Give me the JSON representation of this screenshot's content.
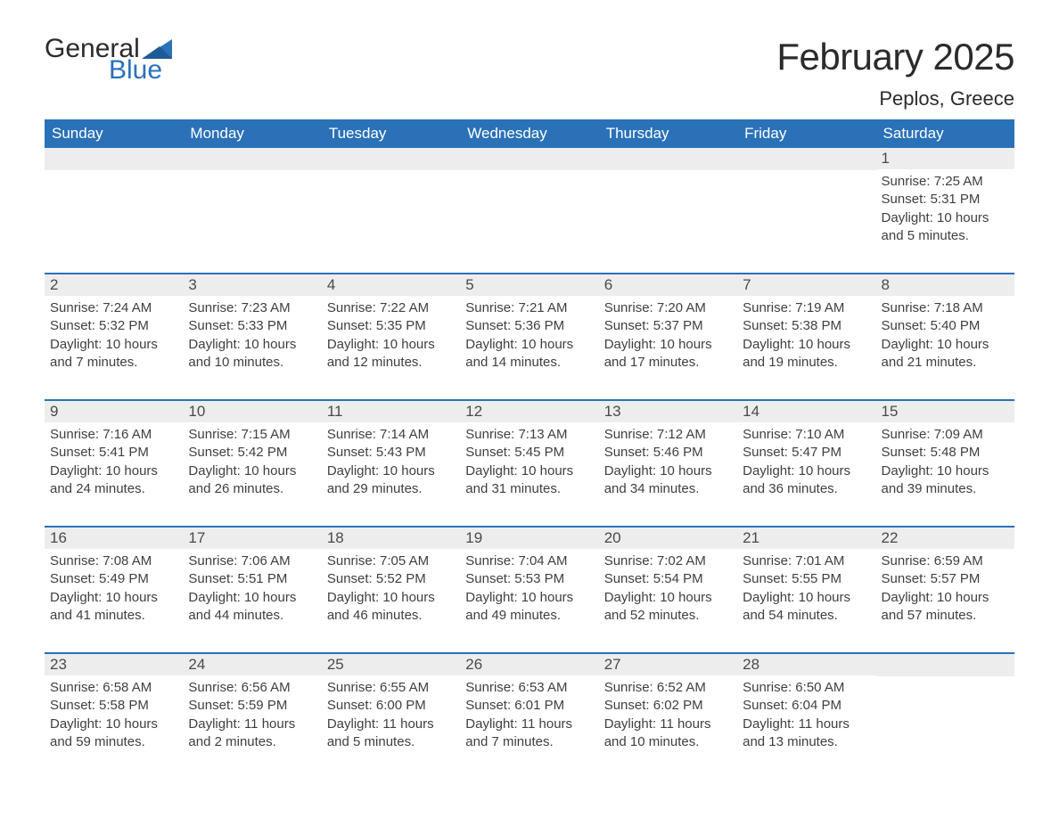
{
  "logo": {
    "word1": "General",
    "word2": "Blue"
  },
  "title": "February 2025",
  "location": "Peplos, Greece",
  "colors": {
    "header_bg": "#2a71b8",
    "header_text": "#ffffff",
    "daynum_bg": "#ededed",
    "row_divider": "#2a71b8",
    "body_text": "#3f3f3f",
    "page_bg": "#ffffff"
  },
  "font": {
    "family": "Arial",
    "title_size": 42,
    "location_size": 22,
    "weekday_size": 17,
    "daynum_size": 17,
    "body_size": 15
  },
  "weekdays": [
    "Sunday",
    "Monday",
    "Tuesday",
    "Wednesday",
    "Thursday",
    "Friday",
    "Saturday"
  ],
  "weeks": [
    [
      null,
      null,
      null,
      null,
      null,
      null,
      {
        "n": "1",
        "sunrise": "Sunrise: 7:25 AM",
        "sunset": "Sunset: 5:31 PM",
        "daylight": "Daylight: 10 hours and 5 minutes."
      }
    ],
    [
      {
        "n": "2",
        "sunrise": "Sunrise: 7:24 AM",
        "sunset": "Sunset: 5:32 PM",
        "daylight": "Daylight: 10 hours and 7 minutes."
      },
      {
        "n": "3",
        "sunrise": "Sunrise: 7:23 AM",
        "sunset": "Sunset: 5:33 PM",
        "daylight": "Daylight: 10 hours and 10 minutes."
      },
      {
        "n": "4",
        "sunrise": "Sunrise: 7:22 AM",
        "sunset": "Sunset: 5:35 PM",
        "daylight": "Daylight: 10 hours and 12 minutes."
      },
      {
        "n": "5",
        "sunrise": "Sunrise: 7:21 AM",
        "sunset": "Sunset: 5:36 PM",
        "daylight": "Daylight: 10 hours and 14 minutes."
      },
      {
        "n": "6",
        "sunrise": "Sunrise: 7:20 AM",
        "sunset": "Sunset: 5:37 PM",
        "daylight": "Daylight: 10 hours and 17 minutes."
      },
      {
        "n": "7",
        "sunrise": "Sunrise: 7:19 AM",
        "sunset": "Sunset: 5:38 PM",
        "daylight": "Daylight: 10 hours and 19 minutes."
      },
      {
        "n": "8",
        "sunrise": "Sunrise: 7:18 AM",
        "sunset": "Sunset: 5:40 PM",
        "daylight": "Daylight: 10 hours and 21 minutes."
      }
    ],
    [
      {
        "n": "9",
        "sunrise": "Sunrise: 7:16 AM",
        "sunset": "Sunset: 5:41 PM",
        "daylight": "Daylight: 10 hours and 24 minutes."
      },
      {
        "n": "10",
        "sunrise": "Sunrise: 7:15 AM",
        "sunset": "Sunset: 5:42 PM",
        "daylight": "Daylight: 10 hours and 26 minutes."
      },
      {
        "n": "11",
        "sunrise": "Sunrise: 7:14 AM",
        "sunset": "Sunset: 5:43 PM",
        "daylight": "Daylight: 10 hours and 29 minutes."
      },
      {
        "n": "12",
        "sunrise": "Sunrise: 7:13 AM",
        "sunset": "Sunset: 5:45 PM",
        "daylight": "Daylight: 10 hours and 31 minutes."
      },
      {
        "n": "13",
        "sunrise": "Sunrise: 7:12 AM",
        "sunset": "Sunset: 5:46 PM",
        "daylight": "Daylight: 10 hours and 34 minutes."
      },
      {
        "n": "14",
        "sunrise": "Sunrise: 7:10 AM",
        "sunset": "Sunset: 5:47 PM",
        "daylight": "Daylight: 10 hours and 36 minutes."
      },
      {
        "n": "15",
        "sunrise": "Sunrise: 7:09 AM",
        "sunset": "Sunset: 5:48 PM",
        "daylight": "Daylight: 10 hours and 39 minutes."
      }
    ],
    [
      {
        "n": "16",
        "sunrise": "Sunrise: 7:08 AM",
        "sunset": "Sunset: 5:49 PM",
        "daylight": "Daylight: 10 hours and 41 minutes."
      },
      {
        "n": "17",
        "sunrise": "Sunrise: 7:06 AM",
        "sunset": "Sunset: 5:51 PM",
        "daylight": "Daylight: 10 hours and 44 minutes."
      },
      {
        "n": "18",
        "sunrise": "Sunrise: 7:05 AM",
        "sunset": "Sunset: 5:52 PM",
        "daylight": "Daylight: 10 hours and 46 minutes."
      },
      {
        "n": "19",
        "sunrise": "Sunrise: 7:04 AM",
        "sunset": "Sunset: 5:53 PM",
        "daylight": "Daylight: 10 hours and 49 minutes."
      },
      {
        "n": "20",
        "sunrise": "Sunrise: 7:02 AM",
        "sunset": "Sunset: 5:54 PM",
        "daylight": "Daylight: 10 hours and 52 minutes."
      },
      {
        "n": "21",
        "sunrise": "Sunrise: 7:01 AM",
        "sunset": "Sunset: 5:55 PM",
        "daylight": "Daylight: 10 hours and 54 minutes."
      },
      {
        "n": "22",
        "sunrise": "Sunrise: 6:59 AM",
        "sunset": "Sunset: 5:57 PM",
        "daylight": "Daylight: 10 hours and 57 minutes."
      }
    ],
    [
      {
        "n": "23",
        "sunrise": "Sunrise: 6:58 AM",
        "sunset": "Sunset: 5:58 PM",
        "daylight": "Daylight: 10 hours and 59 minutes."
      },
      {
        "n": "24",
        "sunrise": "Sunrise: 6:56 AM",
        "sunset": "Sunset: 5:59 PM",
        "daylight": "Daylight: 11 hours and 2 minutes."
      },
      {
        "n": "25",
        "sunrise": "Sunrise: 6:55 AM",
        "sunset": "Sunset: 6:00 PM",
        "daylight": "Daylight: 11 hours and 5 minutes."
      },
      {
        "n": "26",
        "sunrise": "Sunrise: 6:53 AM",
        "sunset": "Sunset: 6:01 PM",
        "daylight": "Daylight: 11 hours and 7 minutes."
      },
      {
        "n": "27",
        "sunrise": "Sunrise: 6:52 AM",
        "sunset": "Sunset: 6:02 PM",
        "daylight": "Daylight: 11 hours and 10 minutes."
      },
      {
        "n": "28",
        "sunrise": "Sunrise: 6:50 AM",
        "sunset": "Sunset: 6:04 PM",
        "daylight": "Daylight: 11 hours and 13 minutes."
      },
      null
    ]
  ]
}
